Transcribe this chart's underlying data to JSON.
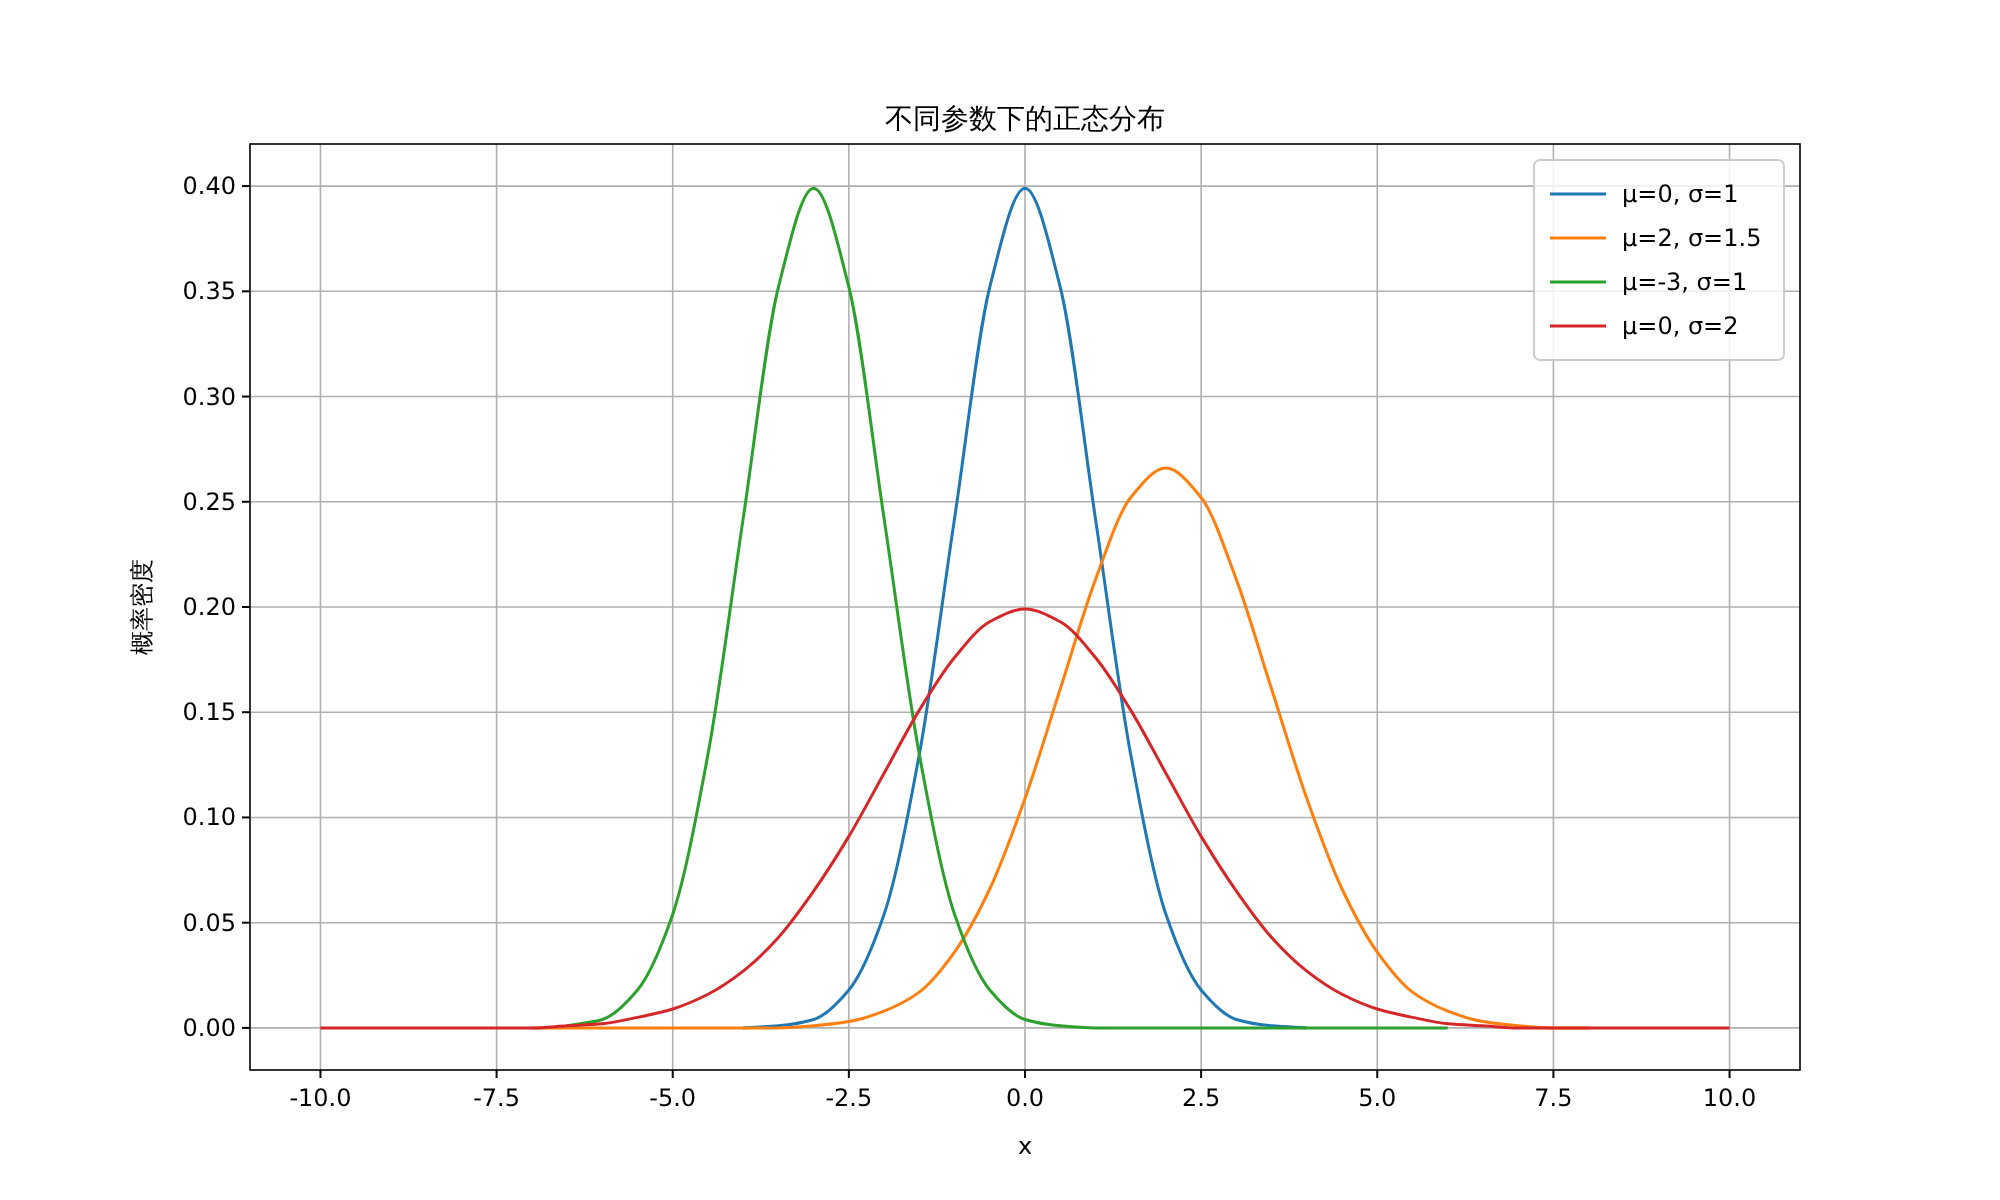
{
  "chart_data": {
    "type": "line",
    "title": "不同参数下的正态分布",
    "xlabel": "x",
    "ylabel": "概率密度",
    "x": [
      -10,
      -9.5,
      -9,
      -8.5,
      -8,
      -7.5,
      -7,
      -6.5,
      -6,
      -5.5,
      -5,
      -4.5,
      -4,
      -3.5,
      -3,
      -2.5,
      -2,
      -1.5,
      -1,
      -0.5,
      0,
      0.5,
      1,
      1.5,
      2,
      2.5,
      3,
      3.5,
      4,
      4.5,
      5,
      5.5,
      6,
      6.5,
      7,
      7.5,
      8,
      8.5,
      9,
      9.5,
      10
    ],
    "series": [
      {
        "name": "μ=0, σ=1",
        "color": "#1f77b4",
        "values": [
          null,
          null,
          null,
          null,
          null,
          null,
          null,
          null,
          null,
          null,
          null,
          null,
          0,
          0.001,
          0.004,
          0.018,
          0.054,
          0.13,
          0.242,
          0.352,
          0.399,
          0.352,
          0.242,
          0.13,
          0.054,
          0.018,
          0.004,
          0.001,
          0,
          null,
          null,
          null,
          null,
          null,
          null,
          null,
          null,
          null,
          null,
          null,
          null
        ]
      },
      {
        "name": "μ=2, σ=1.5",
        "color": "#ff7f0e",
        "values": [
          null,
          null,
          null,
          null,
          null,
          null,
          0,
          0,
          0,
          0,
          0,
          0,
          0,
          0,
          0.001,
          0.003,
          0.008,
          0.017,
          0.036,
          0.066,
          0.109,
          0.161,
          0.213,
          0.252,
          0.266,
          0.252,
          0.213,
          0.161,
          0.109,
          0.066,
          0.036,
          0.017,
          0.008,
          0.003,
          0.001,
          0,
          0,
          null,
          null,
          null,
          null
        ]
      },
      {
        "name": "μ=-3, σ=1",
        "color": "#2ca02c",
        "values": [
          null,
          null,
          null,
          null,
          null,
          null,
          null,
          0.001,
          0.004,
          0.018,
          0.054,
          0.13,
          0.242,
          0.352,
          0.399,
          0.352,
          0.242,
          0.13,
          0.054,
          0.018,
          0.004,
          0.001,
          0,
          0,
          0,
          0,
          0,
          0,
          0,
          0,
          0,
          0,
          0,
          null,
          null,
          null,
          null,
          null,
          null,
          null,
          null
        ]
      },
      {
        "name": "μ=0, σ=2",
        "color": "#d62728",
        "values": [
          0,
          0,
          0,
          0,
          0,
          0,
          0,
          0.001,
          0.002,
          0.005,
          0.009,
          0.016,
          0.027,
          0.043,
          0.065,
          0.091,
          0.121,
          0.151,
          0.176,
          0.193,
          0.199,
          0.193,
          0.176,
          0.151,
          0.121,
          0.091,
          0.065,
          0.043,
          0.027,
          0.016,
          0.009,
          0.005,
          0.002,
          0.001,
          0,
          0,
          0,
          0,
          0,
          0,
          0
        ]
      }
    ],
    "xlim": [
      -11,
      11
    ],
    "ylim": [
      -0.02,
      0.42
    ],
    "xticks": [
      {
        "value": -10,
        "label": "-10.0"
      },
      {
        "value": -7.5,
        "label": "-7.5"
      },
      {
        "value": -5,
        "label": "-5.0"
      },
      {
        "value": -2.5,
        "label": "-2.5"
      },
      {
        "value": 0,
        "label": "0.0"
      },
      {
        "value": 2.5,
        "label": "2.5"
      },
      {
        "value": 5,
        "label": "5.0"
      },
      {
        "value": 7.5,
        "label": "7.5"
      },
      {
        "value": 10,
        "label": "10.0"
      }
    ],
    "yticks": [
      {
        "value": 0,
        "label": "0.00"
      },
      {
        "value": 0.05,
        "label": "0.05"
      },
      {
        "value": 0.1,
        "label": "0.10"
      },
      {
        "value": 0.15,
        "label": "0.15"
      },
      {
        "value": 0.2,
        "label": "0.20"
      },
      {
        "value": 0.25,
        "label": "0.25"
      },
      {
        "value": 0.3,
        "label": "0.30"
      },
      {
        "value": 0.35,
        "label": "0.35"
      },
      {
        "value": 0.4,
        "label": "0.40"
      }
    ],
    "grid": true,
    "legend": "top right"
  }
}
